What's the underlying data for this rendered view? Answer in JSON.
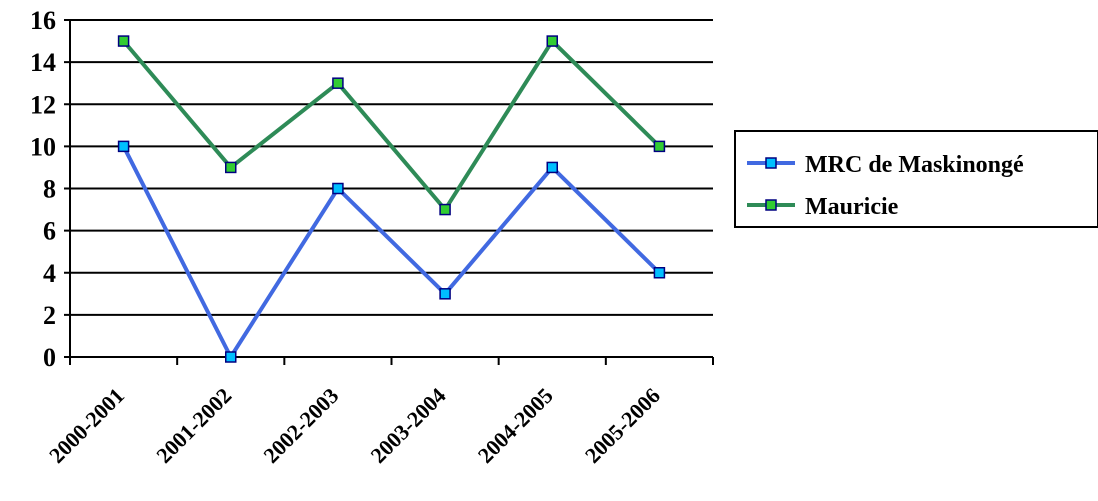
{
  "chart_data": {
    "type": "line",
    "title": "",
    "xlabel": "",
    "ylabel": "",
    "categories": [
      "2000-2001",
      "2001-2002",
      "2002-2003",
      "2003-2004",
      "2004-2005",
      "2005-2006"
    ],
    "ylim": [
      0,
      16
    ],
    "yticks": [
      0,
      2,
      4,
      6,
      8,
      10,
      12,
      14,
      16
    ],
    "grid": "horizontal",
    "legend_position": "right",
    "series": [
      {
        "name": "MRC de Maskinongé",
        "values": [
          10,
          0,
          8,
          3,
          9,
          4
        ],
        "color": "#4169E1",
        "marker_fill": "#00BFFF",
        "marker": "square"
      },
      {
        "name": "Mauricie",
        "values": [
          15,
          9,
          13,
          7,
          15,
          10
        ],
        "color": "#2E8B57",
        "marker_fill": "#32CD32",
        "marker": "square"
      }
    ]
  }
}
